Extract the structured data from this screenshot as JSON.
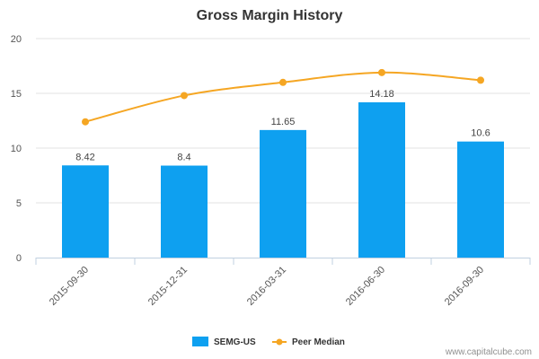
{
  "chart_data": {
    "type": "bar",
    "title": "Gross Margin History",
    "categories": [
      "2015-09-30",
      "2015-12-31",
      "2016-03-31",
      "2016-06-30",
      "2016-09-30"
    ],
    "series": [
      {
        "name": "SEMG-US",
        "type": "bar",
        "values": [
          8.42,
          8.4,
          11.65,
          14.18,
          10.6
        ],
        "color": "#0ea0f0",
        "labels": [
          "8.42",
          "8.4",
          "11.65",
          "14.18",
          "10.6"
        ]
      },
      {
        "name": "Peer Median",
        "type": "line",
        "values": [
          12.4,
          14.8,
          16.0,
          16.9,
          16.2
        ],
        "color": "#f5a623"
      }
    ],
    "yticks": [
      "0",
      "5",
      "10",
      "15",
      "20"
    ],
    "ylim": [
      0,
      20
    ],
    "legend_position": "bottom-center"
  },
  "credit": "www.capitalcube.com"
}
